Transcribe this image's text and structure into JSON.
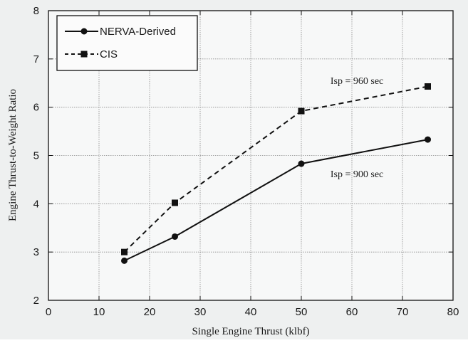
{
  "chart_data": {
    "type": "line",
    "xlabel": "Single Engine Thrust (klbf)",
    "ylabel": "Engine Thrust-to-Weight Ratio",
    "xlim": [
      0,
      80
    ],
    "ylim": [
      2,
      8
    ],
    "xticks": [
      "0",
      "10",
      "20",
      "30",
      "40",
      "50",
      "60",
      "70",
      "80"
    ],
    "yticks": [
      "2",
      "3",
      "4",
      "5",
      "6",
      "7",
      "8"
    ],
    "grid": true,
    "legend_position": "top-left",
    "series": [
      {
        "name": "NERVA-Derived",
        "style": "solid",
        "marker": "circle",
        "x": [
          15,
          25,
          50,
          75
        ],
        "y": [
          2.82,
          3.32,
          4.83,
          5.33
        ]
      },
      {
        "name": "CIS",
        "style": "dashed",
        "marker": "square",
        "x": [
          15,
          25,
          50,
          75
        ],
        "y": [
          3.0,
          4.02,
          5.92,
          6.43
        ]
      }
    ],
    "annotations": [
      {
        "text": "Isp = 960 sec",
        "x": 61,
        "y": 6.48
      },
      {
        "text": "Isp = 900 sec",
        "x": 61,
        "y": 4.55
      }
    ]
  },
  "colors": {
    "line": "#111111",
    "grid": "#8a8a8a",
    "plot_bg": "#f7f8f8"
  }
}
